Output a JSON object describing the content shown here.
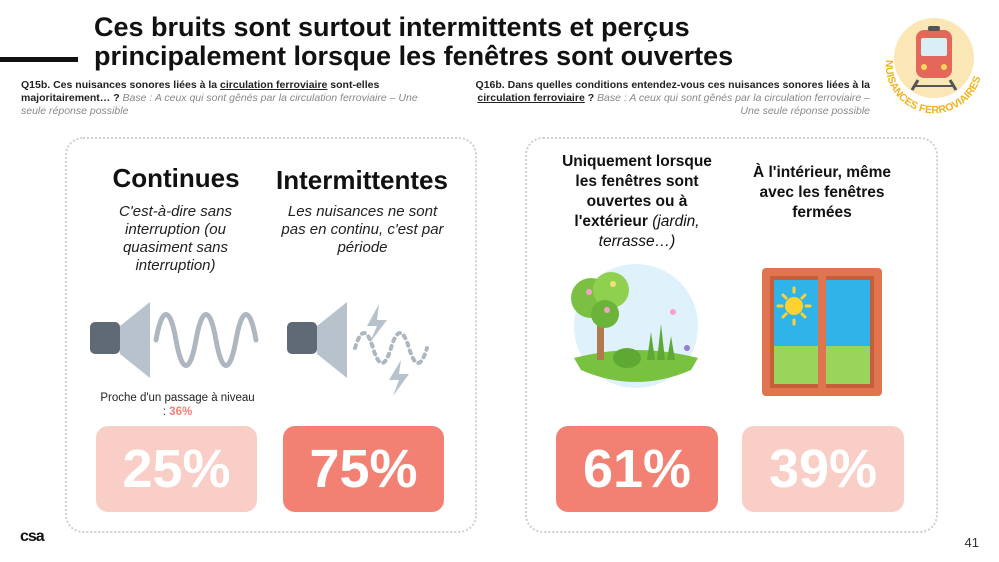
{
  "title": "Ces bruits sont surtout intermittents et perçus principalement lorsque les fenêtres sont ouvertes",
  "badge_text": "NUISANCES FERROVIAIRES",
  "q_left": {
    "code_text": "Q15b. Ces nuisances sonores liées à la ",
    "link": "circulation ferroviaire",
    "tail": " sont-elles majoritairement… ?",
    "base": " Base : A ceux qui sont gênés par la circulation ferroviaire – Une seule réponse possible"
  },
  "q_right": {
    "code_text": "Q16b. Dans quelles conditions entendez-vous ces nuisances sonores liées à la ",
    "link": "circulation ferroviaire",
    "tail": " ?",
    "base": " Base : A ceux qui sont gênés par la circulation ferroviaire – Une seule réponse possible"
  },
  "left_panel": {
    "continues": {
      "title": "Continues",
      "desc": "C'est-à-dire sans interruption (ou quasiment sans interruption)",
      "value": "25%"
    },
    "intermittentes": {
      "title": "Intermittentes",
      "desc": "Les nuisances ne sont pas en continu, c'est par période",
      "value": "75%"
    },
    "note_text": "Proche d'un passage à niveau : ",
    "note_value": "36%"
  },
  "right_panel": {
    "open": {
      "title": "Uniquement lorsque les fenêtres sont ouvertes ou à l'extérieur",
      "suffix": " (jardin, terrasse…)",
      "value": "61%"
    },
    "closed": {
      "title": "À l'intérieur, même avec les fenêtres fermées",
      "value": "39%"
    }
  },
  "colors": {
    "light": "#f9cec7",
    "dark": "#f28173",
    "badge": "#fbe6b6",
    "badge_text": "#f2b21c"
  },
  "page_number": "41",
  "logo": "csa"
}
